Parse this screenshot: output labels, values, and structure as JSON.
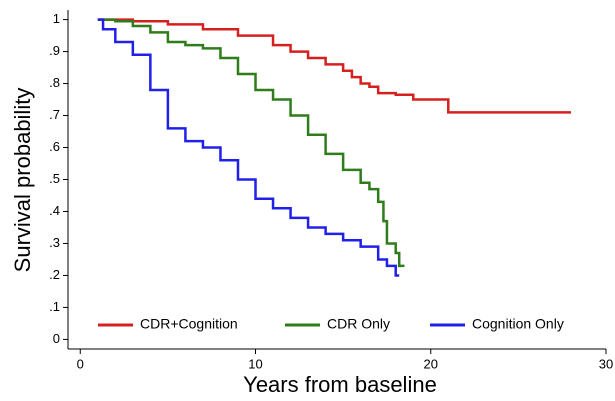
{
  "chart_data": {
    "type": "line",
    "step": "post",
    "xlabel": "Years from baseline",
    "ylabel": "Survival probability",
    "xlim": [
      -0.7,
      30
    ],
    "ylim": [
      -0.03,
      1.03
    ],
    "xticks": [
      0,
      10,
      20,
      30
    ],
    "yticks": [
      0,
      {
        "value": 0.1,
        "label": ".1"
      },
      {
        "value": 0.2,
        "label": ".2"
      },
      {
        "value": 0.3,
        "label": ".3"
      },
      {
        "value": 0.4,
        "label": ".4"
      },
      {
        "value": 0.5,
        "label": ".5"
      },
      {
        "value": 0.6,
        "label": ".6"
      },
      {
        "value": 0.7,
        "label": ".7"
      },
      {
        "value": 0.8,
        "label": ".8"
      },
      {
        "value": 0.9,
        "label": ".9"
      },
      1
    ],
    "grid": false,
    "legend": "bottom",
    "series": [
      {
        "name": "CDR+Cognition",
        "color": "#d62020",
        "x": [
          1,
          3,
          5,
          7,
          9,
          11,
          12,
          13,
          14,
          15,
          15.5,
          16,
          16.5,
          17,
          18,
          19,
          21,
          28
        ],
        "values": [
          1,
          0.995,
          0.985,
          0.97,
          0.95,
          0.92,
          0.9,
          0.88,
          0.86,
          0.84,
          0.82,
          0.8,
          0.79,
          0.77,
          0.765,
          0.75,
          0.71,
          0.71
        ]
      },
      {
        "name": "CDR Only",
        "color": "#2e7d1a",
        "x": [
          1,
          2,
          3,
          4,
          5,
          6,
          7,
          8,
          9,
          10,
          11,
          12,
          13,
          14,
          15,
          16,
          16.5,
          17,
          17.3,
          17.5,
          18,
          18.2,
          18.5
        ],
        "values": [
          1,
          0.995,
          0.98,
          0.96,
          0.93,
          0.92,
          0.91,
          0.88,
          0.83,
          0.78,
          0.75,
          0.7,
          0.64,
          0.58,
          0.53,
          0.49,
          0.47,
          0.43,
          0.37,
          0.3,
          0.27,
          0.23,
          0.23
        ]
      },
      {
        "name": "Cognition Only",
        "color": "#2020e8",
        "x": [
          1,
          1.3,
          2,
          3,
          4,
          5,
          6,
          7,
          8,
          9,
          10,
          11,
          12,
          13,
          14,
          15,
          16,
          17,
          17.5,
          18,
          18.2
        ],
        "values": [
          1,
          0.97,
          0.93,
          0.89,
          0.78,
          0.66,
          0.62,
          0.6,
          0.56,
          0.5,
          0.44,
          0.41,
          0.38,
          0.35,
          0.33,
          0.31,
          0.29,
          0.25,
          0.23,
          0.2,
          0.2
        ]
      }
    ]
  }
}
